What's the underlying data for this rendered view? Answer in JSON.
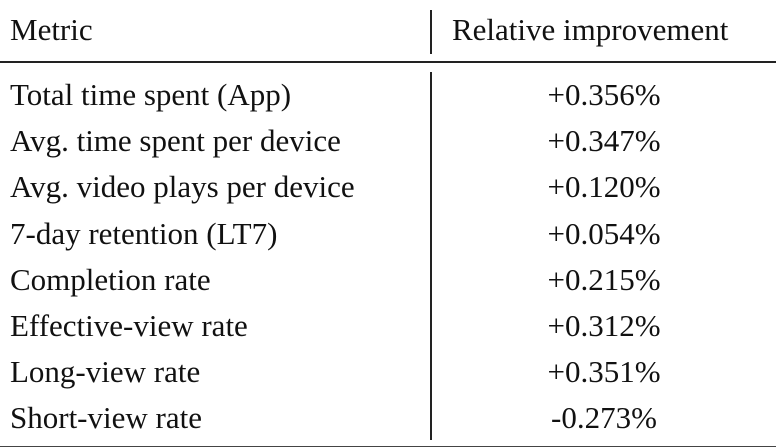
{
  "table": {
    "headers": {
      "metric": "Metric",
      "value": "Relative improvement"
    },
    "rows": [
      {
        "metric": "Total time spent (App)",
        "value": "+0.356%"
      },
      {
        "metric": "Avg. time spent per device",
        "value": "+0.347%"
      },
      {
        "metric": "Avg. video plays per device",
        "value": "+0.120%"
      },
      {
        "metric": "7-day retention (LT7)",
        "value": "+0.054%"
      },
      {
        "metric": "Completion rate",
        "value": "+0.215%"
      },
      {
        "metric": "Effective-view rate",
        "value": "+0.312%"
      },
      {
        "metric": "Long-view rate",
        "value": "+0.351%"
      },
      {
        "metric": "Short-view rate",
        "value": "-0.273%"
      }
    ]
  }
}
